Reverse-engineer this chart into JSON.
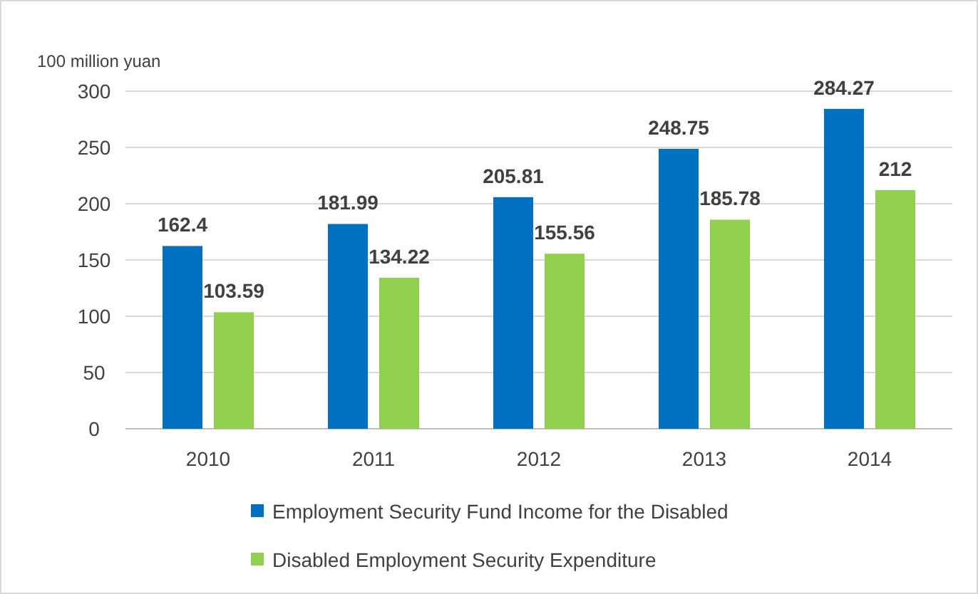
{
  "chart_data": {
    "type": "bar",
    "ylabel": "100 million yuan",
    "categories": [
      "2010",
      "2011",
      "2012",
      "2013",
      "2014"
    ],
    "series": [
      {
        "name": "Employment Security Fund Income for the Disabled",
        "color": "#0070c0",
        "values": [
          162.4,
          181.99,
          205.81,
          248.75,
          284.27
        ]
      },
      {
        "name": "Disabled Employment Security Expenditure",
        "color": "#92d050",
        "values": [
          103.59,
          134.22,
          155.56,
          185.78,
          212
        ]
      }
    ],
    "ylim": [
      0,
      300
    ],
    "yticks": [
      0,
      50,
      100,
      150,
      200,
      250,
      300
    ],
    "grid": "y",
    "legend": "bottom",
    "data_labels": true
  }
}
